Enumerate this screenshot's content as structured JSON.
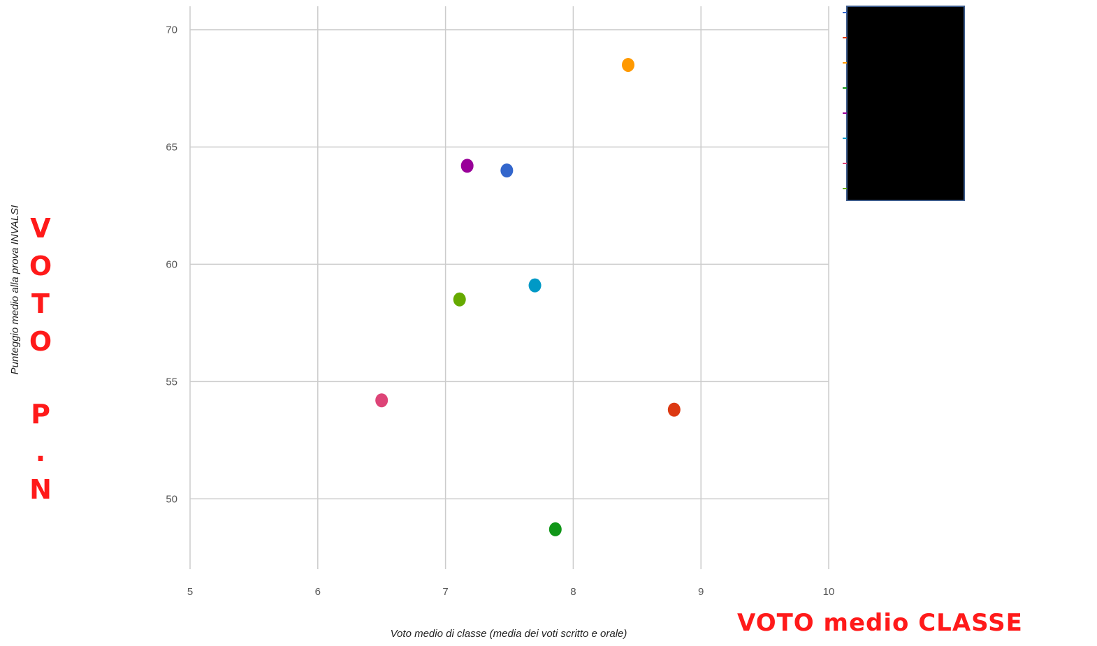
{
  "chart_data": {
    "type": "scatter",
    "xlabel": "Voto medio di classe (media dei voti scritto e orale)",
    "ylabel": "Punteggio medio alla prova INVALSI",
    "xlim": [
      5,
      10
    ],
    "ylim": [
      47,
      71
    ],
    "x_ticks": [
      "5",
      "6",
      "7",
      "8",
      "9",
      "10"
    ],
    "y_ticks": [
      "50",
      "55",
      "60",
      "65",
      "70"
    ],
    "grid": true,
    "legend_placement": "top-right (redacted)",
    "points": [
      {
        "x": 8.43,
        "y": 68.5,
        "color": "#ff9900"
      },
      {
        "x": 7.17,
        "y": 64.2,
        "color": "#990099"
      },
      {
        "x": 7.48,
        "y": 64.0,
        "color": "#3366cc"
      },
      {
        "x": 7.7,
        "y": 59.1,
        "color": "#0099c6"
      },
      {
        "x": 7.11,
        "y": 58.5,
        "color": "#66aa00"
      },
      {
        "x": 6.5,
        "y": 54.2,
        "color": "#dd4477"
      },
      {
        "x": 8.79,
        "y": 53.8,
        "color": "#dc3912"
      },
      {
        "x": 7.86,
        "y": 48.7,
        "color": "#109618"
      }
    ],
    "legend_tick_colors": [
      "#3366cc",
      "#dc3912",
      "#ff9900",
      "#109618",
      "#990099",
      "#0099c6",
      "#dd4477",
      "#66aa00"
    ]
  },
  "overlay": {
    "x_caption": "VOTO medio CLASSE",
    "y_caption_letters": [
      "V",
      "O",
      "T",
      "O",
      "",
      "P",
      ".",
      "N"
    ]
  }
}
